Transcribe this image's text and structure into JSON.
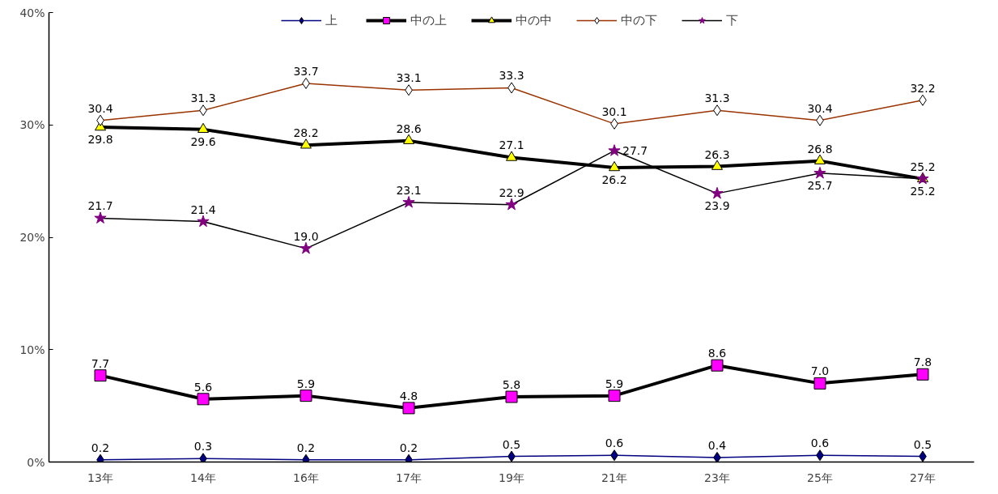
{
  "chart_data": {
    "type": "line",
    "categories": [
      "13年",
      "14年",
      "16年",
      "17年",
      "19年",
      "21年",
      "23年",
      "25年",
      "27年"
    ],
    "ylim": [
      0,
      40
    ],
    "yticks": [
      {
        "value": 0,
        "label": "0%"
      },
      {
        "value": 10,
        "label": "10%"
      },
      {
        "value": 20,
        "label": "20%"
      },
      {
        "value": 30,
        "label": "30%"
      },
      {
        "value": 40,
        "label": "40%"
      }
    ],
    "grid": false,
    "legend": "top",
    "series": [
      {
        "name": "上",
        "color": "#000080",
        "colors": [
          "#000080",
          "#000080",
          "#000080",
          "#000080",
          "#000080",
          "#000080",
          "#000080",
          "#000080",
          "#000080"
        ],
        "marker": "diamond",
        "values": [
          0.2,
          0.3,
          0.2,
          0.2,
          0.5,
          0.6,
          0.4,
          0.6,
          0.5
        ],
        "value_labels": [
          "0.2",
          "0.3",
          "0.2",
          "0.2",
          "0.5",
          "0.6",
          "0.4",
          "0.6",
          "0.5"
        ]
      },
      {
        "name": "中の上",
        "color": "#000000",
        "colors": [
          "#ff00ff",
          "#ff00ff",
          "#ff00ff",
          "#ff00ff",
          "#ff00ff",
          "#ff00ff",
          "#ff00ff",
          "#ff00ff",
          "#ff00ff"
        ],
        "marker": "square",
        "values": [
          7.7,
          5.6,
          5.9,
          4.8,
          5.8,
          5.9,
          8.6,
          7.0,
          7.8
        ],
        "value_labels": [
          "7.7",
          "5.6",
          "5.9",
          "4.8",
          "5.8",
          "5.9",
          "8.6",
          "7.0",
          "7.8"
        ]
      },
      {
        "name": "中の中",
        "color": "#000000",
        "colors": [
          "#ffff00",
          "#ffff00",
          "#ffff00",
          "#ffff00",
          "#ffff00",
          "#ffff00",
          "#ffff00",
          "#ffff00",
          "#ffff00"
        ],
        "marker": "triangle",
        "values": [
          29.8,
          29.6,
          28.2,
          28.6,
          27.1,
          26.2,
          26.3,
          26.8,
          25.2
        ],
        "value_labels": [
          "29.8",
          "29.6",
          "28.2",
          "28.6",
          "27.1",
          "26.2",
          "26.3",
          "26.8",
          "25.2"
        ]
      },
      {
        "name": "中の下",
        "color": "#993300",
        "colors": [
          "#ffffff",
          "#ffffff",
          "#ffffff",
          "#ffffff",
          "#ffffff",
          "#ffffff",
          "#ffffff",
          "#ffffff",
          "#ffffff"
        ],
        "marker": "diamond",
        "values": [
          30.4,
          31.3,
          33.7,
          33.1,
          33.3,
          30.1,
          31.3,
          30.4,
          32.2
        ],
        "value_labels": [
          "30.4",
          "31.3",
          "33.7",
          "33.1",
          "33.3",
          "30.1",
          "31.3",
          "30.4",
          "32.2"
        ]
      },
      {
        "name": "下",
        "color": "#000000",
        "colors": [
          "#800080",
          "#800080",
          "#800080",
          "#800080",
          "#800080",
          "#800080",
          "#800080",
          "#800080",
          "#800080"
        ],
        "marker": "star",
        "values": [
          21.7,
          21.4,
          19.0,
          23.1,
          22.9,
          27.7,
          23.9,
          25.7,
          25.2
        ],
        "value_labels": [
          "21.7",
          "21.4",
          "19.0",
          "23.1",
          "22.9",
          "27.7",
          "23.9",
          "25.7",
          "25.2"
        ]
      }
    ]
  }
}
